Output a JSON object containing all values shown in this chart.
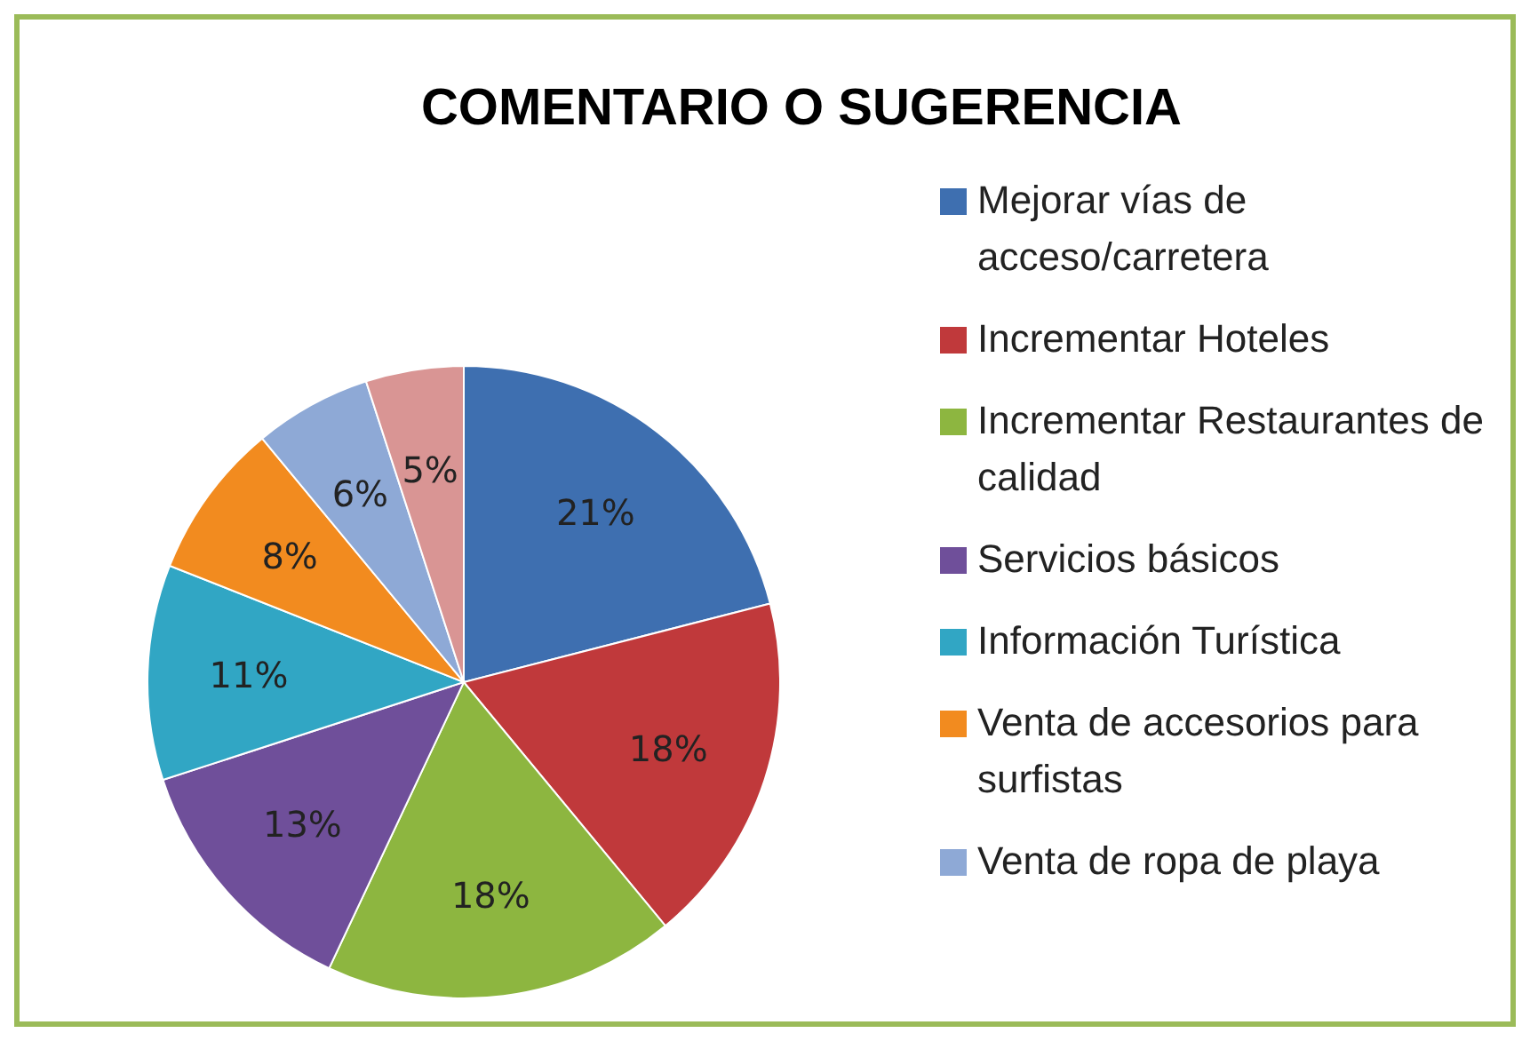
{
  "chart_data": {
    "type": "pie",
    "title": "COMENTARIO O SUGERENCIA",
    "categories": [
      "Mejorar vías de acceso/carretera",
      "Incrementar Hoteles",
      "Incrementar Restaurantes de calidad",
      "Servicios básicos",
      "Información Turística",
      "Venta de accesorios para surfistas",
      "Venta de ropa de playa",
      null
    ],
    "values": [
      21,
      18,
      18,
      13,
      11,
      8,
      6,
      5
    ],
    "value_labels": [
      "21%",
      "18%",
      "18%",
      "13%",
      "11%",
      "8%",
      "6%",
      "5%"
    ],
    "colors": [
      "#3e6fb0",
      "#c0393b",
      "#8db640",
      "#6f4f9a",
      "#31a6c4",
      "#f28b1f",
      "#8ea9d6",
      "#d99594"
    ],
    "legend": "right"
  }
}
